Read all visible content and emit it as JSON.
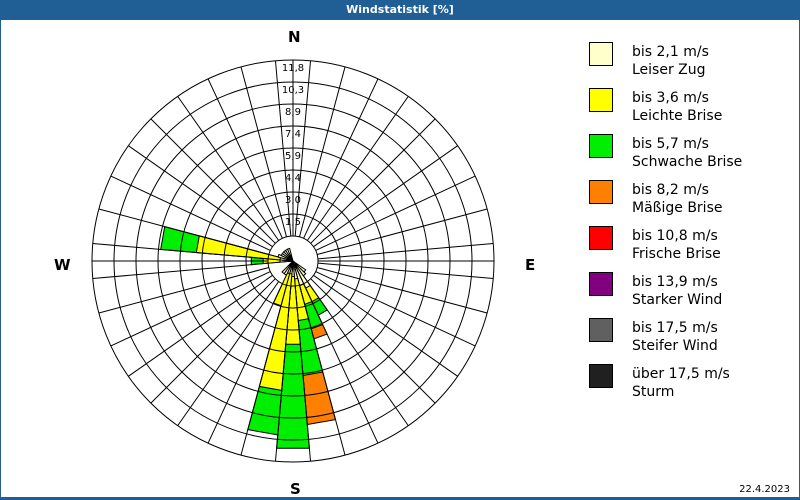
{
  "title": "Windstatistik [%]",
  "date": "22.4.2023",
  "compass": {
    "n": "N",
    "e": "E",
    "s": "S",
    "w": "W"
  },
  "legend": [
    {
      "speed": "bis 2,1 m/s",
      "name": "Leiser Zug",
      "color": "#ffffcc"
    },
    {
      "speed": "bis 3,6 m/s",
      "name": "Leichte Brise",
      "color": "#ffff00"
    },
    {
      "speed": "bis 5,7 m/s",
      "name": "Schwache Brise",
      "color": "#00ee00"
    },
    {
      "speed": "bis 8,2 m/s",
      "name": "Mäßige Brise",
      "color": "#ff8000"
    },
    {
      "speed": "bis 10,8 m/s",
      "name": "Frische Brise",
      "color": "#ff0000"
    },
    {
      "speed": "bis 13,9 m/s",
      "name": "Starker Wind",
      "color": "#800080"
    },
    {
      "speed": "bis 17,5 m/s",
      "name": "Steifer Wind",
      "color": "#606060"
    },
    {
      "speed": "über 17,5 m/s",
      "name": "Sturm",
      "color": "#202020"
    }
  ],
  "chart_data": {
    "type": "radar-windrose",
    "title": "Windstatistik [%]",
    "ring_labels": [
      "1,5",
      "3,0",
      "4,4",
      "5,9",
      "7,4",
      "8,9",
      "10,3",
      "11,8"
    ],
    "rmax": 11.8,
    "sector_width_deg": 10,
    "series_names": [
      "Leiser Zug",
      "Leichte Brise",
      "Schwache Brise",
      "Mäßige Brise",
      "Frische Brise",
      "Starker Wind",
      "Steifer Wind",
      "Sturm"
    ],
    "sectors": [
      {
        "dir": 150,
        "cumulative": [
          1.0,
          2.0,
          3.0
        ]
      },
      {
        "dir": 160,
        "cumulative": [
          0.7,
          2.0,
          3.7,
          4.4
        ]
      },
      {
        "dir": 170,
        "cumulative": [
          0.4,
          3.0,
          6.7,
          10.0
        ]
      },
      {
        "dir": 180,
        "cumulative": [
          0.3,
          4.6,
          11.6
        ]
      },
      {
        "dir": 190,
        "cumulative": [
          0.2,
          7.7,
          10.7
        ]
      },
      {
        "dir": 200,
        "cumulative": [
          0.2,
          2.1
        ]
      },
      {
        "dir": 270,
        "cumulative": [
          0.2,
          1.0,
          1.8
        ]
      },
      {
        "dir": 280,
        "cumulative": [
          0.2,
          5.5,
          7.9
        ]
      },
      {
        "dir": 290,
        "cumulative": [
          0.3
        ]
      },
      {
        "dir": 300,
        "cumulative": [
          0.2
        ]
      },
      {
        "dir": 310,
        "cumulative": [
          0.2
        ]
      },
      {
        "dir": 320,
        "cumulative": [
          0.2
        ]
      },
      {
        "dir": 330,
        "cumulative": [
          0.2
        ]
      },
      {
        "dir": 340,
        "cumulative": [
          0.2
        ]
      },
      {
        "dir": 210,
        "cumulative": [
          0.3
        ]
      },
      {
        "dir": 220,
        "cumulative": [
          0.3
        ]
      },
      {
        "dir": 140,
        "cumulative": [
          0.4
        ]
      },
      {
        "dir": 130,
        "cumulative": [
          0.3
        ]
      }
    ],
    "legend_position": "right"
  }
}
